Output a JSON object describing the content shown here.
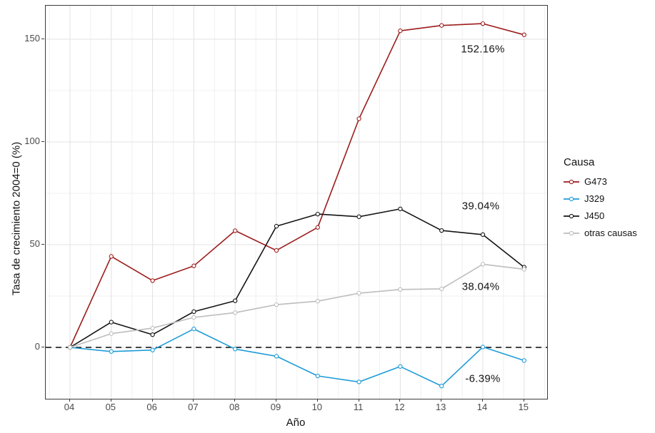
{
  "chart_data": {
    "type": "line",
    "title": "",
    "xlabel": "Año",
    "ylabel": "Tasa de crecimiento 2004=0 (%)",
    "x_tick_labels": [
      "04",
      "05",
      "06",
      "07",
      "08",
      "09",
      "10",
      "11",
      "12",
      "13",
      "14",
      "15"
    ],
    "y_ticks": [
      0,
      50,
      100,
      150
    ],
    "y_minor_ticks": [
      25,
      75,
      125
    ],
    "ylim": [
      -25,
      166
    ],
    "grid": "on",
    "legend_title": "Causa",
    "legend_position": "right",
    "reference_line": {
      "y": 0,
      "style": "dashed",
      "color": "#2b2b2b"
    },
    "series": [
      {
        "name": "G473",
        "color": "#9c1c1c",
        "values": [
          0,
          44.3,
          32.5,
          39.7,
          56.8,
          47.2,
          58.4,
          111.3,
          154.1,
          156.7,
          157.6,
          152.16
        ]
      },
      {
        "name": "J329",
        "color": "#1e9cd7",
        "values": [
          0,
          -2.0,
          -1.3,
          9.0,
          -0.8,
          -4.3,
          -13.9,
          -16.8,
          -9.3,
          -18.8,
          0.2,
          -6.39
        ]
      },
      {
        "name": "J450",
        "color": "#141414",
        "values": [
          0,
          12.3,
          6.2,
          17.4,
          22.7,
          59.0,
          64.9,
          63.6,
          67.4,
          56.9,
          54.9,
          39.04
        ]
      },
      {
        "name": "otras causas",
        "color": "#bdbdbd",
        "values": [
          0,
          6.7,
          9.4,
          14.6,
          16.9,
          20.8,
          22.5,
          26.4,
          28.2,
          28.5,
          40.5,
          38.04
        ]
      }
    ],
    "annotations": [
      {
        "label": "152.16%",
        "x_index": 10,
        "y": 145.0
      },
      {
        "label": "39.04%",
        "x_index": 9.95,
        "y": 68.8
      },
      {
        "label": "38.04%",
        "x_index": 9.95,
        "y": 29.5
      },
      {
        "label": "-6.39%",
        "x_index": 10,
        "y": -15.3
      }
    ],
    "colors": {
      "grid_major": "#e3e3e3",
      "grid_minor": "#f1f1f1",
      "panel_border": "#3c3c3c",
      "axis_text": "#4a4a4a",
      "marker_fill": "#ffffff"
    }
  }
}
